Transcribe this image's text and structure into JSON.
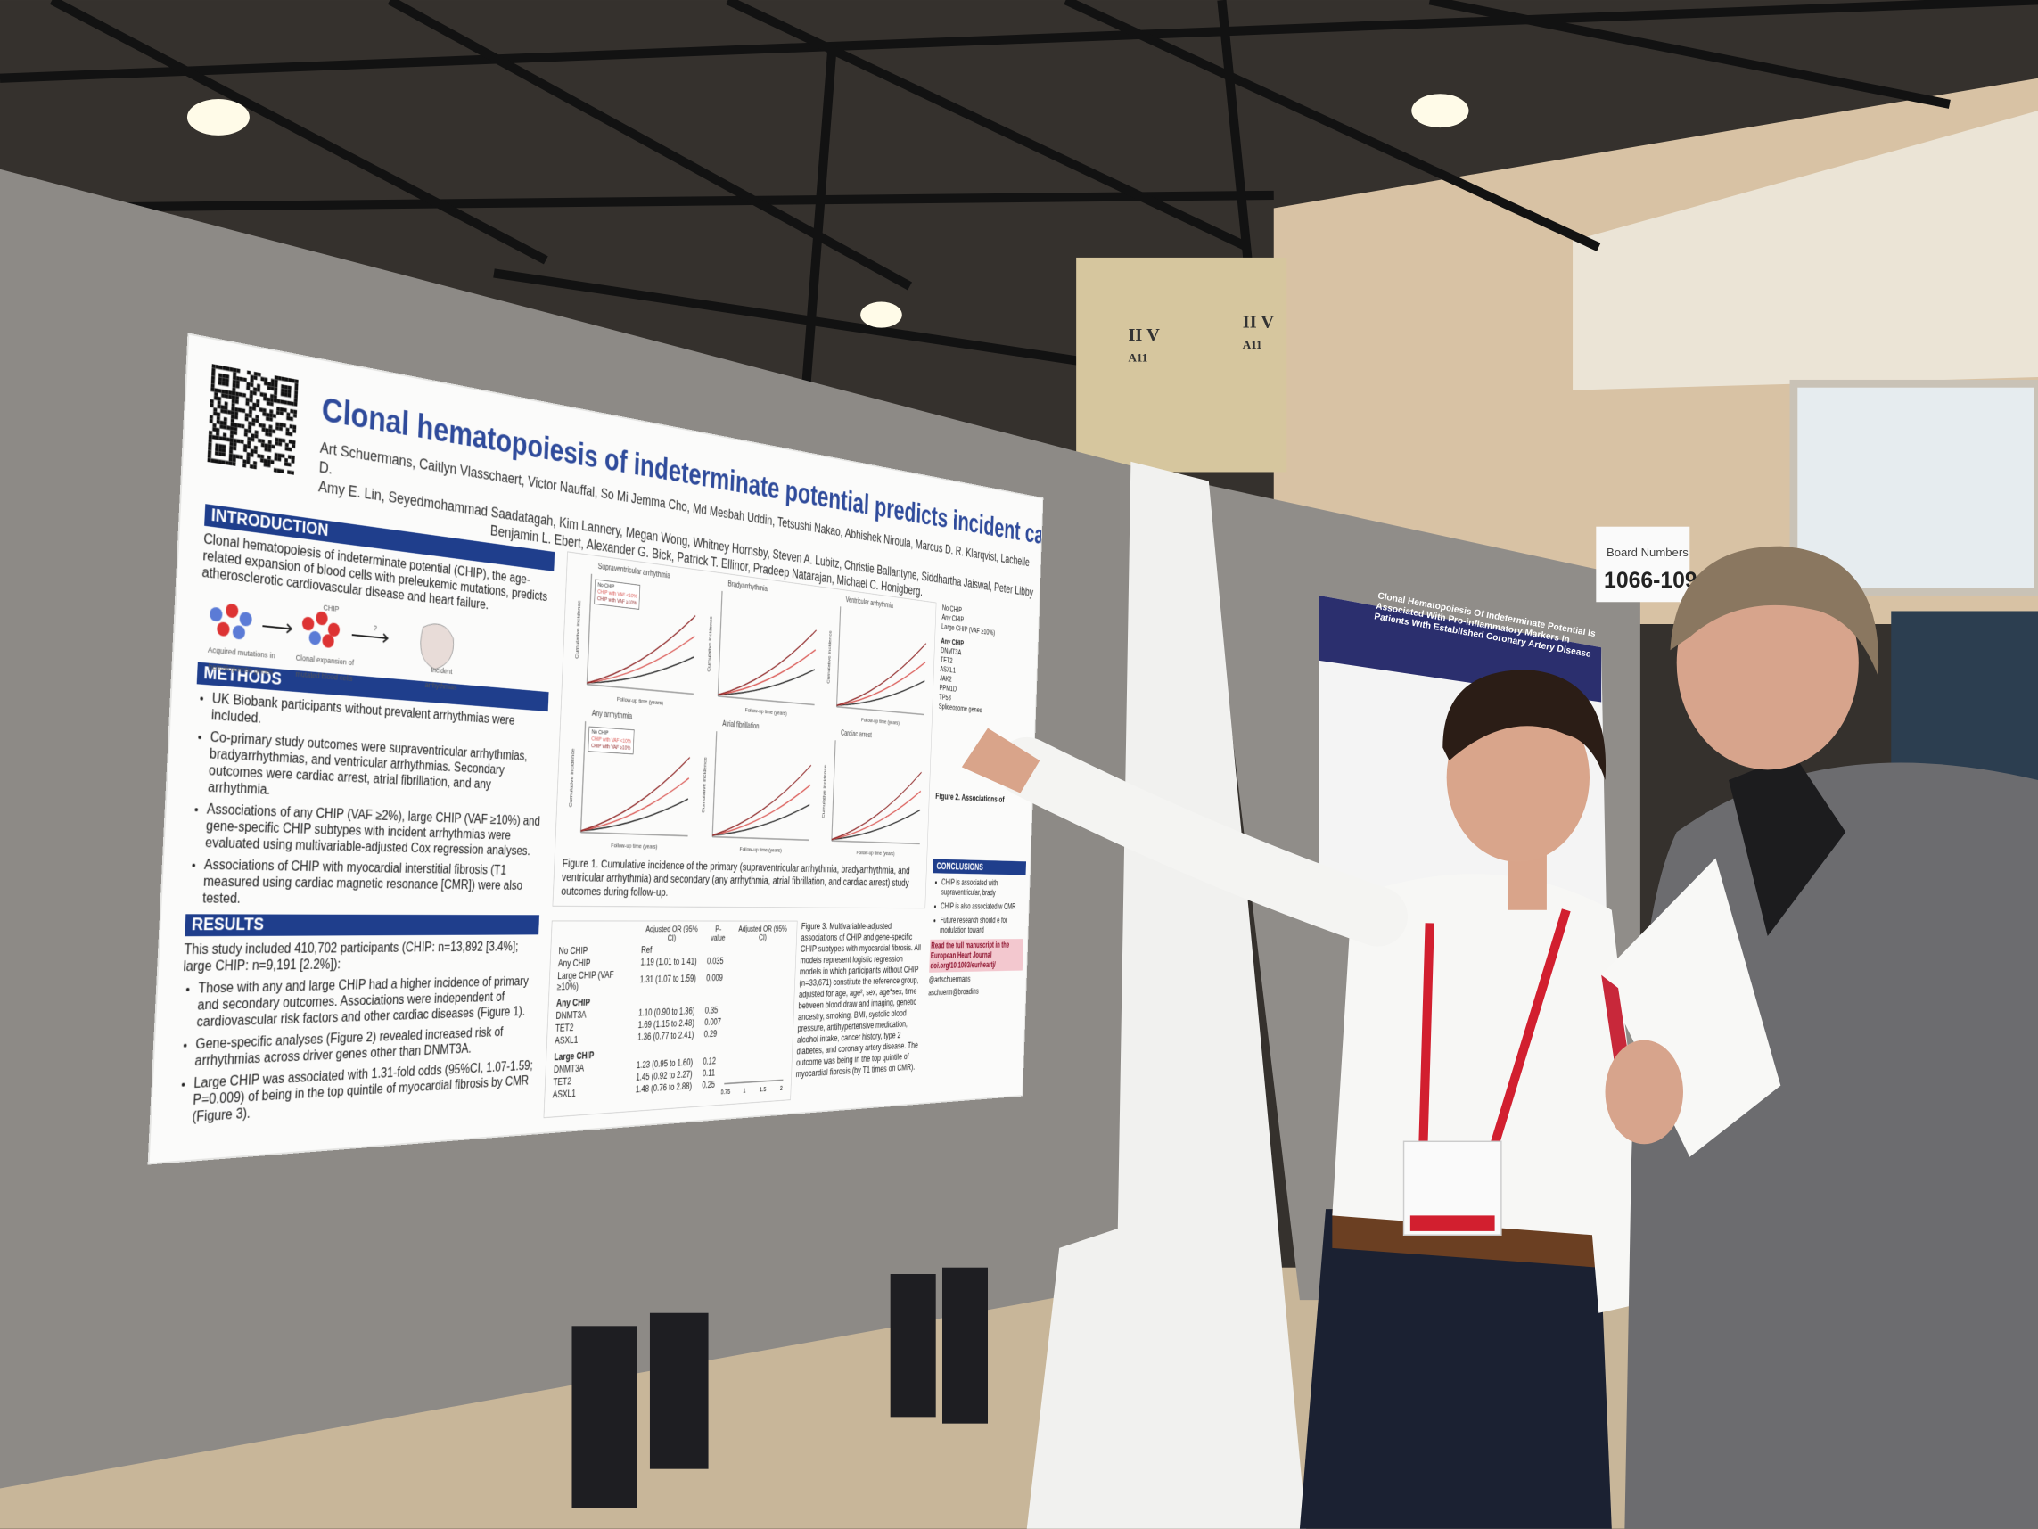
{
  "venue": {
    "pillar_labels": [
      "II V",
      "A11",
      "II V",
      "A11"
    ],
    "board_sign": [
      "Board Numbers",
      "1066-109"
    ],
    "other_poster_title": "Clonal Hematopoiesis Of Indeterminate Potential Is Associated With Pro-inflammatory Markers In Patients With Established Coronary Artery Disease"
  },
  "poster": {
    "title": "Clonal hematopoiesis of indeterminate potential predicts incident cardiac arrhythmias",
    "authors": [
      "Art Schuermans, Caitlyn Vlasschaert, Victor Nauffal, So Mi Jemma Cho, Md Mesbah Uddin, Tetsushi Nakao, Abhishek Niroula, Marcus D. R. Klarqvist, Lachelle D.",
      "Amy E. Lin, Seyedmohammad Saadatagah, Kim Lannery, Megan Wong, Whitney Hornsby, Steven A. Lubitz, Christie Ballantyne, Siddhartha Jaiswal, Peter Libby",
      "Benjamin L. Ebert, Alexander G. Bick, Patrick T. Ellinor, Pradeep Natarajan, Michael C. Honigberg."
    ],
    "introduction": {
      "heading": "INTRODUCTION",
      "text": "Clonal hematopoiesis of indeterminate potential (CHIP), the age-related expansion of blood cells with preleukemic mutations, predicts atherosclerotic cardiovascular disease and heart failure.",
      "diagram_labels": [
        "Acquired mutations in hematopoietic genes",
        "CHIP",
        "Clonal expansion of mutated blood cells",
        "?",
        "Incident arrhythmias"
      ]
    },
    "methods": {
      "heading": "METHODS",
      "bullets": [
        "UK Biobank participants without prevalent arrhythmias were included.",
        "Co-primary study outcomes were supraventricular arrhythmias, bradyarrhythmias, and ventricular arrhythmias. Secondary outcomes were cardiac arrest, atrial fibrillation, and any arrhythmia.",
        "Associations of any CHIP (VAF ≥2%), large CHIP (VAF ≥10%) and gene-specific CHIP subtypes with incident arrhythmias were evaluated using multivariable-adjusted Cox regression analyses.",
        "Associations of CHIP with myocardial interstitial fibrosis (T1 measured using cardiac magnetic resonance [CMR]) were also tested."
      ]
    },
    "results": {
      "heading": "RESULTS",
      "intro": "This study included 410,702 participants (CHIP: n=13,892 [3.4%]; large CHIP: n=9,191 [2.2%]):",
      "bullets": [
        "Those with any and large CHIP had a higher incidence of primary and secondary outcomes. Associations were independent of cardiovascular risk factors and other cardiac diseases (Figure 1).",
        "Gene-specific analyses (Figure 2) revealed increased risk of arrhythmias across driver genes other than DNMT3A.",
        "Large CHIP was associated with 1.31-fold odds (95%CI, 1.07-1.59; P=0.009) of being in the top quintile of myocardial fibrosis by CMR (Figure 3)."
      ]
    },
    "figure1": {
      "panels": [
        "Supraventricular arrhythmia",
        "Bradyarrhythmia",
        "Ventricular arrhythmia",
        "Any arrhythmia",
        "Atrial fibrillation",
        "Cardiac arrest"
      ],
      "legend": [
        "No CHIP",
        "CHIP with VAF <10%",
        "CHIP with VAF ≥10%"
      ],
      "x_label": "Follow-up time (years)",
      "y_label": "Cumulative incidence",
      "caption": "Figure 1. Cumulative incidence of the primary (supraventricular arrhythmia, bradyarrhythmia, and ventricular arrhythmia) and secondary (any arrhythmia, atrial fibrillation, and cardiac arrest) study outcomes during follow-up."
    },
    "figure2": {
      "rows": [
        "No CHIP",
        "Any CHIP",
        "Large CHIP (VAF ≥10%)",
        "Any CHIP",
        "DNMT3A",
        "TET2",
        "ASXL1",
        "JAK2",
        "PPM1D",
        "TP53",
        "Spliceosome genes"
      ],
      "caption": "Figure 2. Associations of"
    },
    "figure3": {
      "headers": [
        "Adjusted OR (95% CI)",
        "P-value",
        "Adjusted OR (95% CI)"
      ],
      "rows": [
        [
          "No CHIP",
          "Ref"
        ],
        [
          "Any CHIP",
          "1.19 (1.01 to 1.41)",
          "0.035"
        ],
        [
          "Large CHIP (VAF ≥10%)",
          "1.31 (1.07 to 1.59)",
          "0.009"
        ],
        [
          "Any CHIP"
        ],
        [
          "DNMT3A",
          "1.10 (0.90 to 1.36)",
          "0.35"
        ],
        [
          "TET2",
          "1.69 (1.15 to 2.48)",
          "0.007"
        ],
        [
          "ASXL1",
          "1.36 (0.77 to 2.41)",
          "0.29"
        ],
        [
          "Large CHIP"
        ],
        [
          "DNMT3A",
          "1.23 (0.95 to 1.60)",
          "0.12"
        ],
        [
          "TET2",
          "1.45 (0.92 to 2.27)",
          "0.11"
        ],
        [
          "ASXL1",
          "1.48 (0.76 to 2.88)",
          "0.25"
        ]
      ],
      "axis_ticks": [
        "0.75",
        "1",
        "1.5",
        "2"
      ],
      "caption": "Figure 3. Multivariable-adjusted associations of CHIP and gene-specific CHIP subtypes with myocardial fibrosis. All models represent logistic regression models in which participants without CHIP (n=33,671) constitute the reference group, adjusted for age, age², sex, age*sex, time between blood draw and imaging, genetic ancestry, smoking, BMI, systolic blood pressure, antihypertensive medication, alcohol intake, cancer history, type 2 diabetes, and coronary artery disease. The outcome was being in the top quintile of myocardial fibrosis (by T1 times on CMR)."
    },
    "conclusions": {
      "heading": "CONCLUSIONS",
      "bullets": [
        "CHIP is associated with supraventricular, brady",
        "CHIP is also associated w CMR",
        "Future research should e for modulation toward"
      ],
      "link": "Read the full manuscript in the European Heart Journal doi.org/10.1093/eurheartj/",
      "contacts": [
        "@artschuermans",
        "aschuerm@broadins"
      ]
    }
  }
}
